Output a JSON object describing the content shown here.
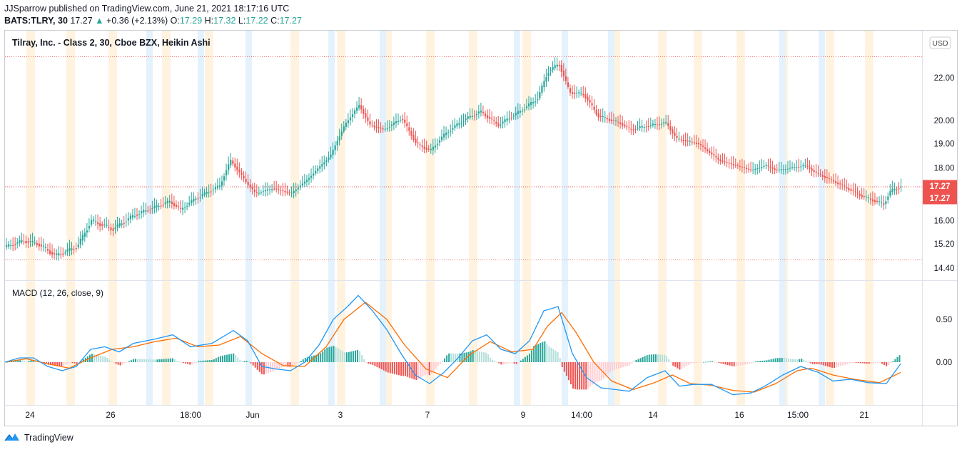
{
  "header": {
    "publisher_line": "JJSparrow published on TradingView.com, June 21, 2021 18:17:16 UTC",
    "symbol": "BATS:TLRY, 30",
    "last": "17.27",
    "change": "+0.36 (+2.13%)",
    "o_label": "O:",
    "o_value": "17.29",
    "h_label": "H:",
    "h_value": "17.32",
    "l_label": "L:",
    "l_value": "17.22",
    "c_label": "C:",
    "c_value": "17.27"
  },
  "chart": {
    "title": "Tilray, Inc. - Class 2, 30, Cboe BZX, Heikin Ashi",
    "currency_badge": "USD",
    "price_labels": [
      "17.27",
      "17.27"
    ],
    "macd_label": "MACD (12, 26, close, 9)"
  },
  "footer": {
    "brand": "TradingView"
  },
  "colors": {
    "up": "#26a69a",
    "down": "#ef5350",
    "macd": "#2196f3",
    "signal": "#ff6d00",
    "hist_up_strong": "#26a69a",
    "hist_up_weak": "#b2dfdb",
    "hist_down_strong": "#ef5350",
    "hist_down_weak": "#ffcdd2",
    "session_orange": "#fff3e0",
    "session_blue": "#e3f2fd"
  },
  "chart_data": [
    {
      "type": "candlestick",
      "title": "Tilray, Inc. - Class 2, 30, Cboe BZX, Heikin Ashi",
      "y_ticks": [
        "22.00",
        "20.00",
        "19.00",
        "18.00",
        "16.00",
        "15.20",
        "14.40"
      ],
      "y_tick_values": [
        22,
        20,
        19,
        18,
        16,
        15.2,
        14.4
      ],
      "log_scale": true,
      "x_ticks": [
        "24",
        "26",
        "18:00",
        "Jun",
        "3",
        "7",
        "9",
        "14:00",
        "14",
        "16",
        "15:00",
        "21"
      ],
      "current_price": 17.27,
      "price_path": [
        [
          0,
          15.1
        ],
        [
          25,
          15.3
        ],
        [
          45,
          15.2
        ],
        [
          70,
          14.8
        ],
        [
          100,
          15.1
        ],
        [
          120,
          16.0
        ],
        [
          150,
          15.7
        ],
        [
          180,
          16.2
        ],
        [
          230,
          16.7
        ],
        [
          245,
          16.4
        ],
        [
          265,
          16.8
        ],
        [
          300,
          17.3
        ],
        [
          315,
          18.3
        ],
        [
          335,
          17.5
        ],
        [
          350,
          17.0
        ],
        [
          375,
          17.2
        ],
        [
          400,
          17.0
        ],
        [
          425,
          17.6
        ],
        [
          455,
          18.5
        ],
        [
          475,
          19.8
        ],
        [
          495,
          20.7
        ],
        [
          510,
          19.8
        ],
        [
          530,
          19.6
        ],
        [
          555,
          20.1
        ],
        [
          575,
          19.0
        ],
        [
          595,
          18.7
        ],
        [
          615,
          19.4
        ],
        [
          640,
          20.0
        ],
        [
          665,
          20.4
        ],
        [
          690,
          19.8
        ],
        [
          720,
          20.4
        ],
        [
          745,
          21.0
        ],
        [
          760,
          22.3
        ],
        [
          775,
          22.7
        ],
        [
          790,
          21.3
        ],
        [
          810,
          21.2
        ],
        [
          830,
          20.2
        ],
        [
          860,
          19.9
        ],
        [
          875,
          19.6
        ],
        [
          905,
          19.8
        ],
        [
          925,
          19.9
        ],
        [
          940,
          19.2
        ],
        [
          970,
          19.0
        ],
        [
          1000,
          18.3
        ],
        [
          1045,
          17.9
        ],
        [
          1065,
          18.1
        ],
        [
          1080,
          17.9
        ],
        [
          1100,
          18.0
        ],
        [
          1120,
          18.1
        ],
        [
          1135,
          17.8
        ],
        [
          1165,
          17.4
        ],
        [
          1200,
          16.9
        ],
        [
          1230,
          16.6
        ],
        [
          1240,
          17.1
        ],
        [
          1255,
          17.27
        ]
      ]
    },
    {
      "type": "line",
      "title": "MACD (12, 26, close, 9)",
      "y_ticks": [
        "0.50",
        "0.00"
      ],
      "y_tick_values": [
        0.5,
        0
      ],
      "series": [
        {
          "values": [
            [
              0,
              0.0
            ],
            [
              20,
              0.05
            ],
            [
              40,
              0.05
            ],
            [
              60,
              -0.05
            ],
            [
              80,
              -0.1
            ],
            [
              100,
              -0.05
            ],
            [
              120,
              0.15
            ],
            [
              140,
              0.18
            ],
            [
              160,
              0.12
            ],
            [
              180,
              0.22
            ],
            [
              210,
              0.27
            ],
            [
              235,
              0.32
            ],
            [
              260,
              0.18
            ],
            [
              290,
              0.22
            ],
            [
              320,
              0.37
            ],
            [
              340,
              0.25
            ],
            [
              360,
              -0.05
            ],
            [
              380,
              -0.08
            ],
            [
              400,
              -0.1
            ],
            [
              420,
              0.0
            ],
            [
              440,
              0.2
            ],
            [
              460,
              0.5
            ],
            [
              480,
              0.65
            ],
            [
              495,
              0.78
            ],
            [
              515,
              0.6
            ],
            [
              535,
              0.38
            ],
            [
              555,
              0.1
            ],
            [
              575,
              -0.15
            ],
            [
              595,
              -0.25
            ],
            [
              615,
              -0.12
            ],
            [
              635,
              0.05
            ],
            [
              655,
              0.25
            ],
            [
              675,
              0.32
            ],
            [
              695,
              0.15
            ],
            [
              715,
              0.1
            ],
            [
              735,
              0.25
            ],
            [
              755,
              0.6
            ],
            [
              775,
              0.65
            ],
            [
              795,
              0.1
            ],
            [
              815,
              -0.18
            ],
            [
              835,
              -0.3
            ],
            [
              855,
              -0.32
            ],
            [
              875,
              -0.34
            ],
            [
              900,
              -0.18
            ],
            [
              925,
              -0.1
            ],
            [
              945,
              -0.28
            ],
            [
              965,
              -0.26
            ],
            [
              990,
              -0.26
            ],
            [
              1020,
              -0.38
            ],
            [
              1045,
              -0.36
            ],
            [
              1065,
              -0.28
            ],
            [
              1090,
              -0.15
            ],
            [
              1115,
              -0.05
            ],
            [
              1140,
              -0.12
            ],
            [
              1160,
              -0.22
            ],
            [
              1185,
              -0.2
            ],
            [
              1210,
              -0.24
            ],
            [
              1235,
              -0.25
            ],
            [
              1255,
              -0.02
            ]
          ]
        },
        {
          "values": [
            [
              0,
              0.0
            ],
            [
              30,
              0.04
            ],
            [
              60,
              -0.02
            ],
            [
              90,
              -0.07
            ],
            [
              120,
              0.05
            ],
            [
              150,
              0.15
            ],
            [
              180,
              0.18
            ],
            [
              210,
              0.24
            ],
            [
              240,
              0.28
            ],
            [
              270,
              0.18
            ],
            [
              300,
              0.2
            ],
            [
              330,
              0.3
            ],
            [
              360,
              0.1
            ],
            [
              390,
              -0.04
            ],
            [
              420,
              -0.05
            ],
            [
              450,
              0.18
            ],
            [
              475,
              0.5
            ],
            [
              505,
              0.7
            ],
            [
              535,
              0.5
            ],
            [
              560,
              0.2
            ],
            [
              590,
              -0.08
            ],
            [
              620,
              -0.18
            ],
            [
              650,
              0.08
            ],
            [
              680,
              0.24
            ],
            [
              710,
              0.12
            ],
            [
              740,
              0.15
            ],
            [
              760,
              0.42
            ],
            [
              780,
              0.58
            ],
            [
              800,
              0.35
            ],
            [
              825,
              0.0
            ],
            [
              850,
              -0.22
            ],
            [
              880,
              -0.32
            ],
            [
              910,
              -0.24
            ],
            [
              935,
              -0.15
            ],
            [
              960,
              -0.25
            ],
            [
              990,
              -0.27
            ],
            [
              1020,
              -0.33
            ],
            [
              1050,
              -0.35
            ],
            [
              1080,
              -0.25
            ],
            [
              1110,
              -0.1
            ],
            [
              1130,
              -0.07
            ],
            [
              1160,
              -0.15
            ],
            [
              1190,
              -0.2
            ],
            [
              1225,
              -0.24
            ],
            [
              1255,
              -0.12
            ]
          ]
        }
      ]
    }
  ]
}
